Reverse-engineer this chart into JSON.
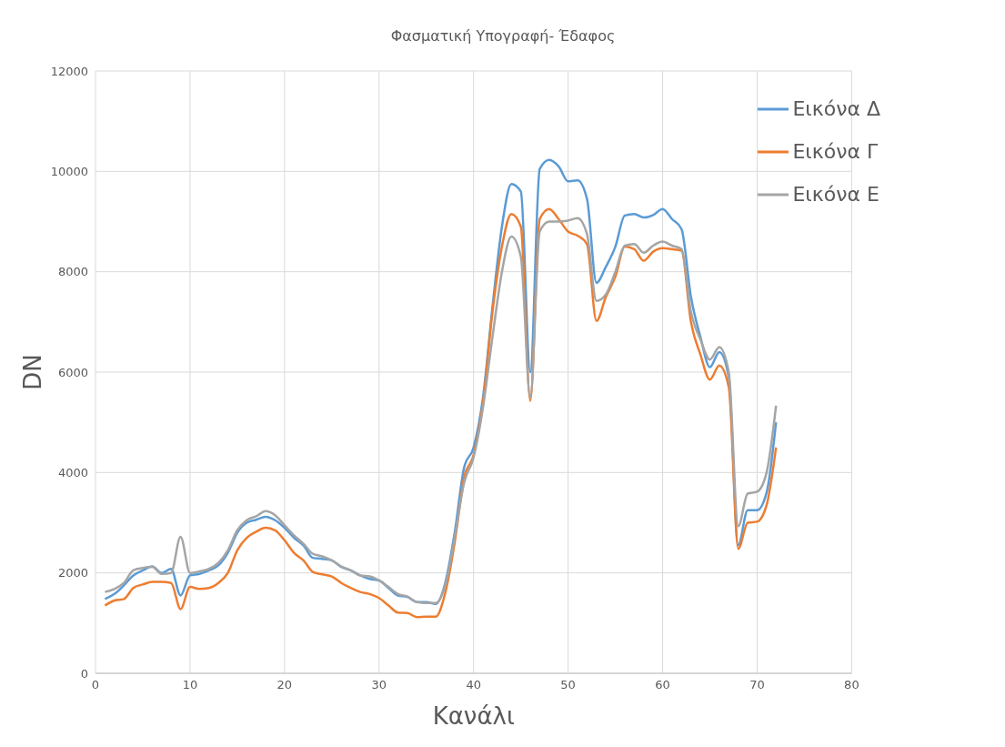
{
  "chart_data": {
    "type": "line",
    "title": "Φασματική Υπογραφή- Έδαφος",
    "xlabel": "Κανάλι",
    "ylabel": "DN",
    "x": [
      1,
      2,
      3,
      4,
      5,
      6,
      7,
      8,
      9,
      10,
      11,
      12,
      13,
      14,
      15,
      16,
      17,
      18,
      19,
      20,
      21,
      22,
      23,
      24,
      25,
      26,
      27,
      28,
      29,
      30,
      31,
      32,
      33,
      34,
      35,
      36,
      37,
      38,
      39,
      40,
      41,
      42,
      43,
      44,
      45,
      46,
      47,
      48,
      49,
      50,
      51,
      52,
      53,
      54,
      55,
      56,
      57,
      58,
      59,
      60,
      61,
      62,
      63,
      64,
      65,
      66,
      67,
      68,
      69,
      70,
      71,
      72
    ],
    "series": [
      {
        "name": "Εικόνα Δ",
        "color": "#5b9bd5",
        "values": [
          1480,
          1580,
          1750,
          1950,
          2050,
          2130,
          2000,
          2080,
          1550,
          1950,
          1980,
          2050,
          2150,
          2400,
          2800,
          3000,
          3060,
          3120,
          3050,
          2900,
          2700,
          2550,
          2300,
          2280,
          2250,
          2120,
          2050,
          1950,
          1880,
          1850,
          1700,
          1550,
          1520,
          1420,
          1420,
          1380,
          1800,
          2800,
          4100,
          4500,
          5500,
          7300,
          8900,
          9750,
          9600,
          6000,
          10050,
          10230,
          10100,
          9800,
          9820,
          9450,
          7780,
          8100,
          8500,
          9120,
          9150,
          9080,
          9130,
          9250,
          9050,
          8850,
          7500,
          6700,
          6100,
          6400,
          5900,
          2550,
          3250,
          3250,
          3600,
          5000
        ]
      },
      {
        "name": "Εικόνα Γ",
        "color": "#ed7d31",
        "values": [
          1350,
          1450,
          1480,
          1700,
          1770,
          1820,
          1820,
          1800,
          1280,
          1720,
          1680,
          1700,
          1800,
          2000,
          2450,
          2700,
          2820,
          2900,
          2850,
          2650,
          2400,
          2250,
          2020,
          1970,
          1930,
          1800,
          1700,
          1620,
          1580,
          1500,
          1350,
          1210,
          1200,
          1120,
          1130,
          1130,
          1600,
          2600,
          3900,
          4350,
          5400,
          7200,
          8500,
          9150,
          8900,
          5430,
          9050,
          9250,
          9050,
          8800,
          8720,
          8550,
          7020,
          7500,
          7900,
          8500,
          8450,
          8220,
          8400,
          8470,
          8450,
          8420,
          7000,
          6350,
          5850,
          6130,
          5700,
          2480,
          3000,
          3020,
          3350,
          4500
        ]
      },
      {
        "name": "Εικόνα Ε",
        "color": "#a5a5a5",
        "values": [
          1620,
          1680,
          1800,
          2050,
          2100,
          2120,
          1980,
          2000,
          2720,
          2000,
          2030,
          2080,
          2200,
          2450,
          2850,
          3050,
          3130,
          3230,
          3150,
          2950,
          2750,
          2580,
          2380,
          2330,
          2250,
          2130,
          2050,
          1950,
          1930,
          1850,
          1720,
          1580,
          1530,
          1420,
          1400,
          1400,
          1750,
          2700,
          3800,
          4300,
          5300,
          6700,
          8000,
          8700,
          8300,
          5500,
          8800,
          9000,
          9000,
          9020,
          9070,
          8750,
          7420,
          7550,
          8000,
          8520,
          8550,
          8380,
          8520,
          8600,
          8520,
          8450,
          7200,
          6650,
          6250,
          6500,
          6000,
          2930,
          3580,
          3620,
          4000,
          5330
        ]
      }
    ],
    "xlim": [
      0,
      80
    ],
    "xticks": [
      0,
      10,
      20,
      30,
      40,
      50,
      60,
      70,
      80
    ],
    "ylim": [
      0,
      12000
    ],
    "yticks": [
      0,
      2000,
      4000,
      6000,
      8000,
      10000,
      12000
    ],
    "grid": true,
    "legend": "top right",
    "marker": "none",
    "line_style": "solid"
  }
}
